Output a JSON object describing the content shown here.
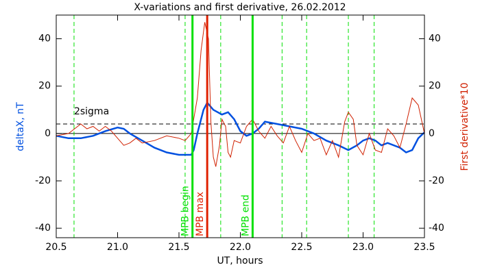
{
  "chart_data": {
    "type": "line",
    "title": "X-variations and first derivative, 26.02.2012",
    "x_label": "UT, hours",
    "y_label": "deltaX, nT",
    "y2_label": "First derivative*10",
    "xlim": [
      20.5,
      23.5
    ],
    "xticks": [
      20.5,
      {
        "value": 21,
        "label": "21.0"
      },
      21.5,
      {
        "value": 22,
        "label": "22.0"
      },
      22.5,
      {
        "value": 23,
        "label": "23.0"
      },
      23.5
    ],
    "ylim": [
      -44,
      50
    ],
    "yticks": [
      -40,
      -20,
      0,
      20,
      40
    ],
    "y2lim": [
      -44,
      50
    ],
    "y2ticks": [
      -40,
      -20,
      0,
      20,
      40
    ],
    "threshold": {
      "value": 4,
      "label": "2sigma",
      "color": "#000000"
    },
    "dashed_lines": {
      "color": "#00e000",
      "x": [
        20.645,
        21.55,
        21.84,
        22.34,
        22.54,
        22.88,
        23.09
      ]
    },
    "markers": [
      {
        "x": 21.61,
        "label": "MPB begin",
        "color": "#00e000"
      },
      {
        "x": 21.73,
        "label": "MPB max",
        "color": "#e02000"
      },
      {
        "x": 22.1,
        "label": "MPB end",
        "color": "#00e000"
      }
    ],
    "series": [
      {
        "name": "deltaX, nT",
        "color": "#0050e0",
        "axis": "y",
        "x": [
          20.5,
          20.6,
          20.7,
          20.8,
          20.9,
          21.0,
          21.05,
          21.1,
          21.2,
          21.3,
          21.4,
          21.5,
          21.6,
          21.62,
          21.65,
          21.7,
          21.73,
          21.78,
          21.85,
          21.9,
          21.95,
          22.0,
          22.05,
          22.1,
          22.15,
          22.2,
          22.3,
          22.4,
          22.5,
          22.6,
          22.7,
          22.8,
          22.88,
          22.95,
          23.0,
          23.05,
          23.1,
          23.15,
          23.2,
          23.3,
          23.35,
          23.4,
          23.45,
          23.5
        ],
        "values": [
          -1,
          -2,
          -2,
          -1,
          1,
          2.5,
          2,
          0,
          -3,
          -6,
          -8,
          -9,
          -9,
          -7,
          0,
          10,
          13,
          10,
          8,
          9,
          6,
          1,
          -1,
          0,
          2,
          5,
          4,
          3,
          2,
          0,
          -3,
          -5,
          -7,
          -5,
          -3,
          -2,
          -3,
          -5,
          -4,
          -6,
          -8,
          -7,
          -2,
          0.5
        ]
      },
      {
        "name": "First derivative*10",
        "color": "#d02000",
        "axis": "y2",
        "x": [
          20.5,
          20.6,
          20.65,
          20.7,
          20.75,
          20.8,
          20.85,
          20.9,
          20.95,
          21.0,
          21.05,
          21.1,
          21.15,
          21.2,
          21.3,
          21.4,
          21.5,
          21.55,
          21.6,
          21.65,
          21.68,
          21.71,
          21.74,
          21.76,
          21.78,
          21.8,
          21.83,
          21.85,
          21.88,
          21.9,
          21.92,
          21.95,
          22.0,
          22.05,
          22.1,
          22.15,
          22.2,
          22.25,
          22.3,
          22.35,
          22.4,
          22.45,
          22.5,
          22.55,
          22.6,
          22.65,
          22.7,
          22.75,
          22.8,
          22.85,
          22.88,
          22.92,
          22.95,
          23.0,
          23.05,
          23.1,
          23.15,
          23.2,
          23.25,
          23.3,
          23.35,
          23.4,
          23.45,
          23.5
        ],
        "values": [
          -1,
          0,
          2,
          4,
          2,
          3,
          1,
          3,
          1,
          -2,
          -5,
          -4,
          -2,
          -4,
          -3,
          -1,
          -2,
          -3,
          0,
          15,
          35,
          47,
          40,
          5,
          -10,
          -14,
          -5,
          6,
          3,
          -8,
          -10,
          -3,
          -4,
          3,
          6,
          1,
          -2,
          3,
          -1,
          -4,
          3,
          -3,
          -8,
          0,
          -3,
          -2,
          -9,
          -3,
          -10,
          5,
          9,
          6,
          -5,
          -9,
          0,
          -7,
          -8,
          2,
          -1,
          -6,
          4,
          15,
          12,
          0
        ]
      }
    ]
  }
}
